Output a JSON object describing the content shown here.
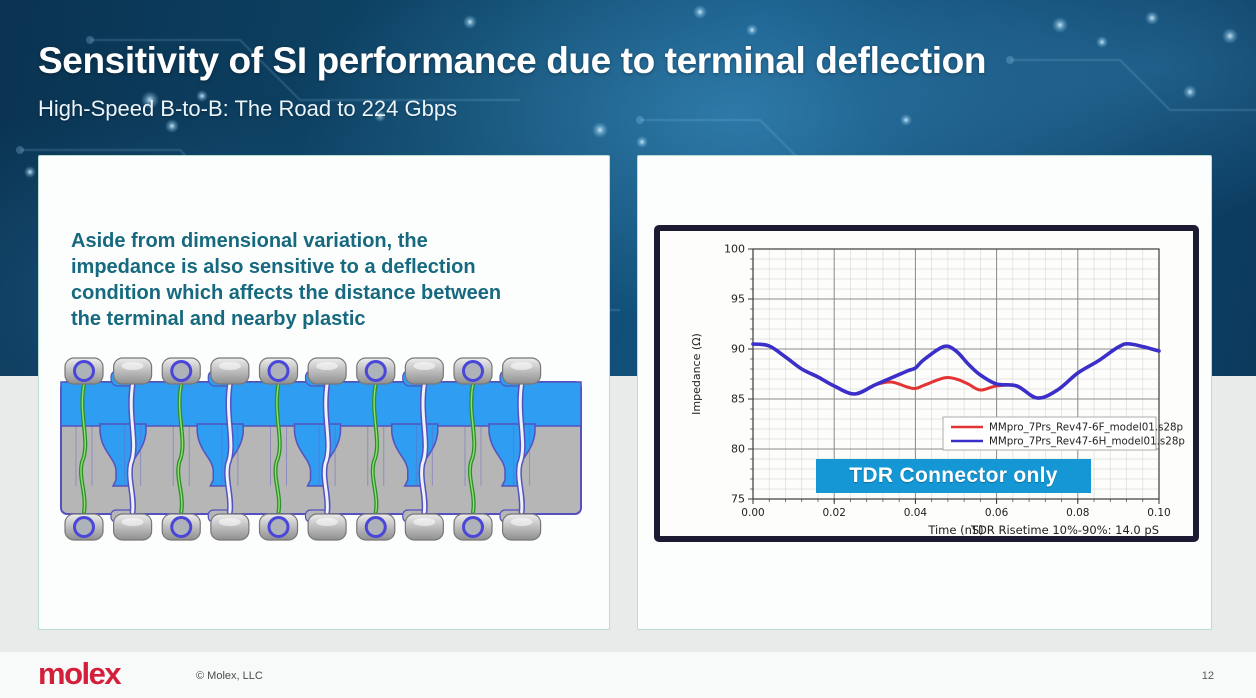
{
  "header": {
    "title": "Sensitivity of SI performance due to terminal deflection",
    "subtitle": "High-Speed B-to-B: The Road to 224 Gbps"
  },
  "left_panel": {
    "paragraph": [
      "Aside from dimensional variation, the",
      "impedance is also sensitive to a deflection",
      "condition which affects the distance between",
      "the terminal and nearby plastic"
    ]
  },
  "chart_data": {
    "type": "line",
    "title": "",
    "xlabel": "Time (nS)",
    "ylabel": "Impedance (Ω)",
    "xlim": [
      0.0,
      0.1
    ],
    "ylim": [
      75,
      100
    ],
    "x_major_step": 0.02,
    "x_minor_step": 0.004,
    "y_major_step": 5,
    "y_minor_step": 1,
    "grid": "on",
    "legend_position": "right-center",
    "x": [
      0.0,
      0.004,
      0.008,
      0.012,
      0.016,
      0.02,
      0.025,
      0.03,
      0.034,
      0.038,
      0.04,
      0.042,
      0.047,
      0.05,
      0.053,
      0.056,
      0.06,
      0.065,
      0.07,
      0.075,
      0.08,
      0.085,
      0.09,
      0.093,
      0.1
    ],
    "series": [
      {
        "name": "MMpro_7Prs_Rev47-6F_model01.s28p",
        "color": "#e23434",
        "width": 3,
        "values": [
          90.5,
          90.3,
          89.2,
          88.0,
          87.2,
          86.3,
          85.5,
          86.4,
          86.7,
          86.2,
          86.05,
          86.35,
          87.1,
          87.0,
          86.5,
          85.9,
          86.3,
          86.3,
          85.1,
          85.9,
          87.6,
          88.8,
          90.2,
          90.5,
          89.8
        ]
      },
      {
        "name": "MMpro_7Prs_Rev47-6H_model01.s28p",
        "color": "#3b2fc9",
        "width": 3.6,
        "values": [
          90.5,
          90.3,
          89.2,
          88.0,
          87.2,
          86.3,
          85.5,
          86.4,
          87.1,
          87.8,
          88.1,
          88.9,
          90.25,
          89.8,
          88.5,
          87.4,
          86.5,
          86.3,
          85.1,
          85.9,
          87.6,
          88.8,
          90.2,
          90.5,
          89.8
        ]
      }
    ],
    "annotations": {
      "badge": "TDR Connector only",
      "badge_bg": "#1497d4",
      "risetime": "TDR Risetime 10%-90%: 14.0 pS"
    }
  },
  "footer": {
    "logo": "molex",
    "logo_color": "#d41f3c",
    "copyright": "© Molex, LLC",
    "page_number": "12"
  }
}
